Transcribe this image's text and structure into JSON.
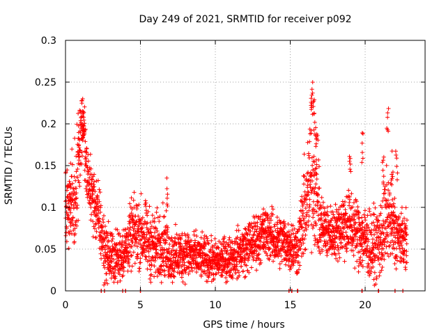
{
  "chart_data": {
    "type": "scatter",
    "title": "Day 249 of 2021, SRMTID for receiver p092",
    "xlabel": "GPS time / hours",
    "ylabel": "SRMTID / TECUs",
    "xlim": [
      0,
      24
    ],
    "ylim": [
      0,
      0.3
    ],
    "x_ticks": [
      0,
      5,
      10,
      15,
      20
    ],
    "x_tick_labels": [
      "0",
      "5",
      "10",
      "15",
      "20"
    ],
    "y_ticks": [
      0,
      0.05,
      0.1,
      0.15,
      0.2,
      0.25,
      0.3
    ],
    "y_tick_labels": [
      "0",
      "0.05",
      "0.1",
      "0.15",
      "0.2",
      "0.25",
      "0.3"
    ],
    "grid": true,
    "marker": "plus",
    "series": [
      {
        "name": "SRMTID",
        "color": "#ff0000",
        "profile": [
          [
            0.0,
            0.09,
            0.03
          ],
          [
            0.3,
            0.11,
            0.02
          ],
          [
            0.6,
            0.1,
            0.03
          ],
          [
            0.8,
            0.15,
            0.03
          ],
          [
            1.0,
            0.19,
            0.03
          ],
          [
            1.2,
            0.2,
            0.02
          ],
          [
            1.4,
            0.14,
            0.02
          ],
          [
            1.7,
            0.12,
            0.02
          ],
          [
            2.0,
            0.1,
            0.02
          ],
          [
            2.3,
            0.08,
            0.02
          ],
          [
            2.6,
            0.05,
            0.02
          ],
          [
            3.0,
            0.04,
            0.015
          ],
          [
            3.5,
            0.04,
            0.015
          ],
          [
            4.0,
            0.05,
            0.015
          ],
          [
            4.5,
            0.07,
            0.02
          ],
          [
            5.0,
            0.07,
            0.02
          ],
          [
            5.5,
            0.06,
            0.02
          ],
          [
            6.0,
            0.05,
            0.02
          ],
          [
            6.5,
            0.06,
            0.02
          ],
          [
            7.0,
            0.04,
            0.015
          ],
          [
            8.0,
            0.045,
            0.015
          ],
          [
            9.0,
            0.04,
            0.012
          ],
          [
            10.0,
            0.035,
            0.012
          ],
          [
            11.0,
            0.04,
            0.012
          ],
          [
            12.0,
            0.05,
            0.015
          ],
          [
            13.0,
            0.065,
            0.015
          ],
          [
            13.5,
            0.07,
            0.015
          ],
          [
            14.0,
            0.06,
            0.015
          ],
          [
            14.5,
            0.06,
            0.015
          ],
          [
            15.0,
            0.055,
            0.015
          ],
          [
            15.5,
            0.05,
            0.015
          ],
          [
            16.0,
            0.1,
            0.03
          ],
          [
            16.5,
            0.14,
            0.04
          ],
          [
            17.0,
            0.08,
            0.02
          ],
          [
            17.5,
            0.07,
            0.015
          ],
          [
            18.0,
            0.07,
            0.015
          ],
          [
            18.5,
            0.08,
            0.02
          ],
          [
            19.0,
            0.08,
            0.02
          ],
          [
            19.5,
            0.07,
            0.02
          ],
          [
            20.0,
            0.06,
            0.02
          ],
          [
            20.5,
            0.05,
            0.02
          ],
          [
            21.0,
            0.06,
            0.02
          ],
          [
            21.5,
            0.09,
            0.03
          ],
          [
            22.0,
            0.07,
            0.02
          ],
          [
            22.5,
            0.06,
            0.015
          ],
          [
            22.8,
            0.06,
            0.015
          ]
        ],
        "spikes": [
          [
            0.3,
            0.13
          ],
          [
            0.9,
            0.19
          ],
          [
            1.1,
            0.23
          ],
          [
            1.2,
            0.22
          ],
          [
            6.8,
            0.14
          ],
          [
            13.2,
            0.11
          ],
          [
            16.4,
            0.25
          ],
          [
            16.5,
            0.26
          ],
          [
            16.6,
            0.23
          ],
          [
            16.7,
            0.21
          ],
          [
            16.8,
            0.19
          ],
          [
            19.0,
            0.17
          ],
          [
            19.8,
            0.19
          ],
          [
            21.2,
            0.17
          ],
          [
            21.5,
            0.22
          ],
          [
            21.8,
            0.17
          ],
          [
            22.1,
            0.17
          ]
        ],
        "zero_points": [
          2.4,
          2.6,
          3.8,
          4.0,
          5.0,
          14.9,
          15.1,
          15.5,
          19.8,
          20.9,
          22.0,
          22.5
        ]
      }
    ]
  }
}
